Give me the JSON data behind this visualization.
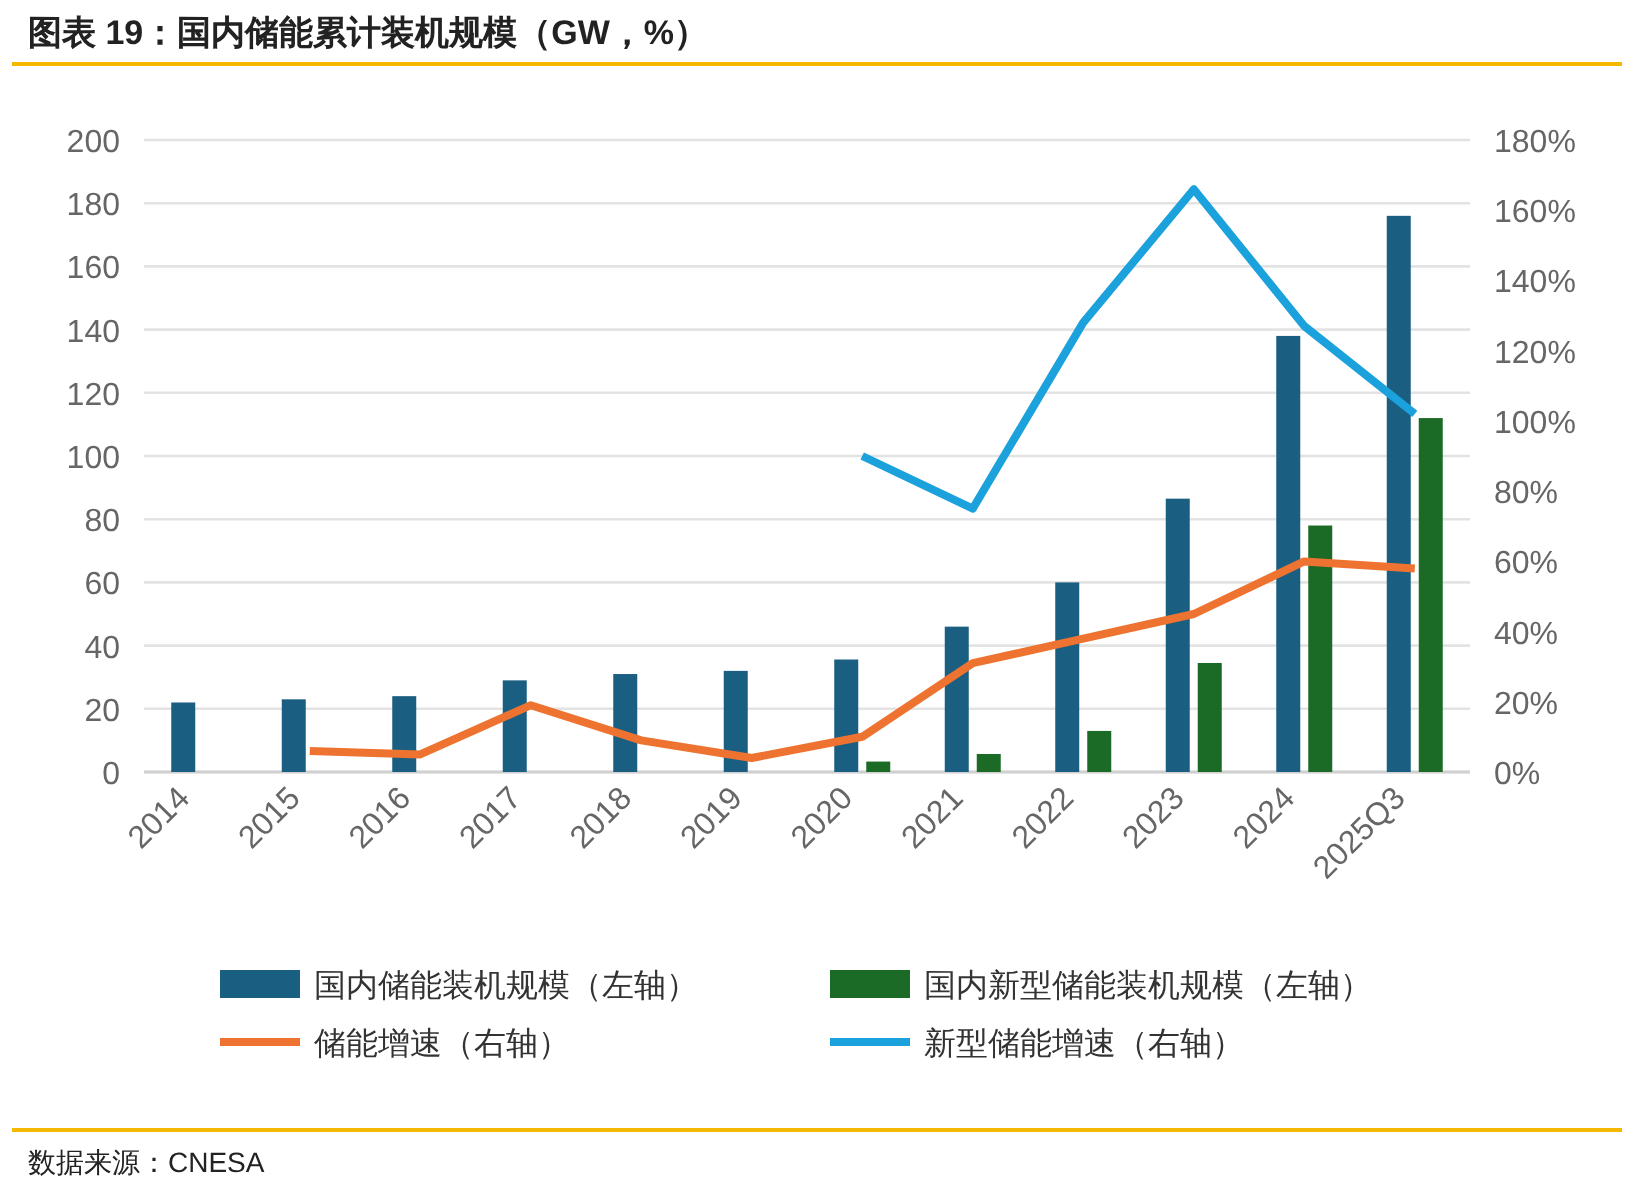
{
  "chart_data": {
    "type": "bar",
    "title": "图表 19：国内储能累计装机规模（GW，%）",
    "categories": [
      "2014",
      "2015",
      "2016",
      "2017",
      "2018",
      "2019",
      "2020",
      "2021",
      "2022",
      "2023",
      "2024",
      "2025Q3"
    ],
    "series": [
      {
        "name": "国内储能装机规模（左轴）",
        "color": "#1a5f82",
        "values": [
          22,
          23,
          24,
          29,
          31,
          32,
          35.6,
          46,
          60,
          86.5,
          138,
          176
        ]
      },
      {
        "name": "国内新型储能装机规模（左轴）",
        "color": "#1b6b26",
        "values": [
          null,
          null,
          null,
          null,
          null,
          null,
          3.3,
          5.7,
          13,
          34.5,
          78,
          112
        ]
      },
      {
        "name": "储能增速（右轴）",
        "type": "line",
        "axis": "y2",
        "color": "#ee7330",
        "values": [
          null,
          6,
          5,
          19,
          9,
          4,
          10,
          31,
          38,
          45,
          60,
          58
        ]
      },
      {
        "name": "新型储能增速（右轴）",
        "type": "line",
        "axis": "y2",
        "color": "#1ba1db",
        "values": [
          null,
          null,
          null,
          null,
          null,
          null,
          90,
          75,
          128,
          166,
          127,
          102
        ]
      }
    ],
    "ylim": [
      0,
      200
    ],
    "yticks": [
      0,
      20,
      40,
      60,
      80,
      100,
      120,
      140,
      160,
      180,
      200
    ],
    "y2lim": [
      0,
      180
    ],
    "y2ticks": [
      {
        "value": 0,
        "label": "0%"
      },
      {
        "value": 20,
        "label": "20%"
      },
      {
        "value": 40,
        "label": "40%"
      },
      {
        "value": 60,
        "label": "60%"
      },
      {
        "value": 80,
        "label": "80%"
      },
      {
        "value": 100,
        "label": "100%"
      },
      {
        "value": 120,
        "label": "120%"
      },
      {
        "value": 140,
        "label": "140%"
      },
      {
        "value": 160,
        "label": "160%"
      },
      {
        "value": 180,
        "label": "180%"
      }
    ],
    "grid": "y",
    "legend": "bottom",
    "marker": "none",
    "annotations": [
      "数据来源：CNESA"
    ]
  }
}
